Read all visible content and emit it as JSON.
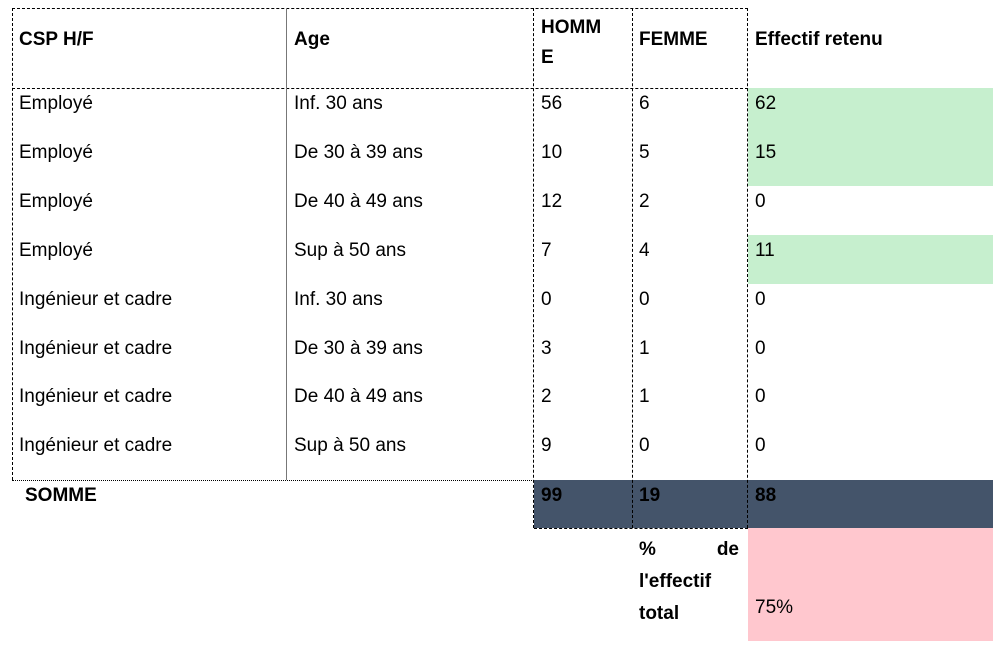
{
  "table": {
    "headers": {
      "csp": "CSP H/F",
      "age": "Age",
      "homme_line1": "HOMM",
      "homme_line2": "E",
      "femme": "FEMME",
      "effectif": "Effectif retenu"
    },
    "rows": [
      {
        "csp": "Employé",
        "age": "Inf. 30 ans",
        "homme": "56",
        "femme": "6",
        "effectif": "62",
        "highlight": true
      },
      {
        "csp": "Employé",
        "age": "De 30 à 39 ans",
        "homme": "10",
        "femme": "5",
        "effectif": "15",
        "highlight": true
      },
      {
        "csp": "Employé",
        "age": "De 40 à 49 ans",
        "homme": "12",
        "femme": "2",
        "effectif": "0",
        "highlight": false
      },
      {
        "csp": "Employé",
        "age": "Sup à 50 ans",
        "homme": "7",
        "femme": "4",
        "effectif": "11",
        "highlight": true
      },
      {
        "csp": "Ingénieur et cadre",
        "age": "Inf. 30 ans",
        "homme": "0",
        "femme": "0",
        "effectif": "0",
        "highlight": false
      },
      {
        "csp": "Ingénieur et cadre",
        "age": "De 30 à 39 ans",
        "homme": "3",
        "femme": "1",
        "effectif": "0",
        "highlight": false
      },
      {
        "csp": "Ingénieur et cadre",
        "age": "De 40 à 49 ans",
        "homme": "2",
        "femme": "1",
        "effectif": "0",
        "highlight": false
      },
      {
        "csp": "Ingénieur et cadre",
        "age": "Sup à 50 ans",
        "homme": "9",
        "femme": "0",
        "effectif": "0",
        "highlight": false
      }
    ],
    "total": {
      "label": "SOMME",
      "homme": "99",
      "femme": "19",
      "effectif": "88"
    },
    "percent": {
      "label_pct": "%",
      "label_de": "de",
      "label_line2": "l'effectif",
      "label_line3": "total",
      "value": "75%"
    }
  },
  "colors": {
    "highlight_green": "#c6efce",
    "total_band": "#44546a",
    "percent_cell": "#ffc7ce"
  }
}
